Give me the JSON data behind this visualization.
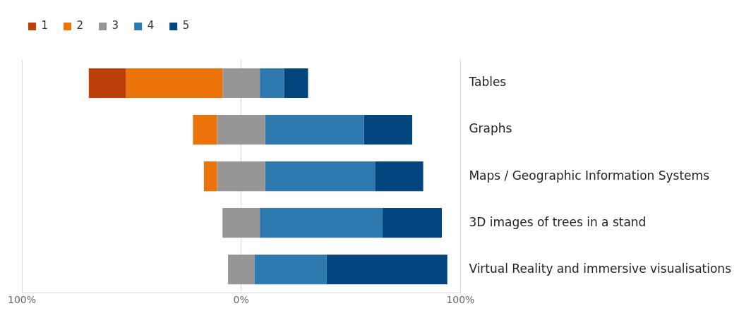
{
  "chart_data": {
    "type": "bar",
    "orientation": "horizontal",
    "categories": [
      "Tables",
      "Graphs",
      "Maps / Geographic Information Systems",
      "3D images of trees in a stand",
      "Virtual Reality and immersive visualisations"
    ],
    "series": [
      {
        "name": "1",
        "color": "#bd3f0a",
        "base": [
          -69.5,
          null,
          null,
          null,
          null
        ],
        "values": [
          17,
          null,
          null,
          null,
          null
        ]
      },
      {
        "name": "2",
        "color": "#eb730a",
        "base": [
          -52.5,
          -22,
          -17,
          null,
          null
        ],
        "values": [
          44,
          11,
          6,
          null,
          null
        ]
      },
      {
        "name": "3",
        "color": "#969696",
        "base": [
          -8.5,
          -11,
          -11,
          -8.5,
          -6
        ],
        "values": [
          17,
          22,
          22,
          17,
          12
        ]
      },
      {
        "name": "4",
        "color": "#2e79b0",
        "base": [
          8.5,
          11,
          11,
          8.5,
          6
        ],
        "values": [
          11,
          45,
          50,
          56,
          33
        ]
      },
      {
        "name": "5",
        "color": "#03467f",
        "base": [
          19.5,
          56,
          61,
          64.5,
          39
        ],
        "values": [
          11,
          22,
          22,
          27,
          55
        ]
      }
    ],
    "xlim": [
      -100,
      100
    ],
    "xticks": [
      {
        "value": -100,
        "label": "100%"
      },
      {
        "value": 0,
        "label": "0%"
      },
      {
        "value": 100,
        "label": "100%"
      }
    ],
    "grid": "x",
    "legend": "top left"
  }
}
